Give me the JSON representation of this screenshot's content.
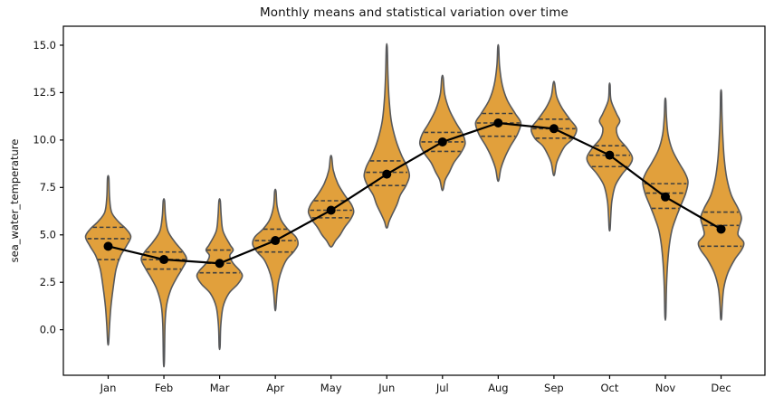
{
  "chart_data": {
    "type": "violin",
    "title": "Monthly means and statistical variation over time",
    "ylabel": "sea_water_temperature",
    "xlabel": "",
    "categories": [
      "Jan",
      "Feb",
      "Mar",
      "Apr",
      "May",
      "Jun",
      "Jul",
      "Aug",
      "Sep",
      "Oct",
      "Nov",
      "Dec"
    ],
    "ylim": [
      -2.4,
      16.0
    ],
    "yticks": [
      {
        "v": 0.0,
        "label": "0.0"
      },
      {
        "v": 2.5,
        "label": "2.5"
      },
      {
        "v": 5.0,
        "label": "5.0"
      },
      {
        "v": 7.5,
        "label": "7.5"
      },
      {
        "v": 10.0,
        "label": "10.0"
      },
      {
        "v": 12.5,
        "label": "12.5"
      },
      {
        "v": 15.0,
        "label": "15.0"
      }
    ],
    "grid": false,
    "legend": "none",
    "mean_series": {
      "name": "monthly mean",
      "values": [
        4.4,
        3.7,
        3.5,
        4.7,
        6.3,
        8.2,
        9.9,
        10.9,
        10.6,
        9.2,
        7.0,
        5.3
      ]
    },
    "violins": [
      {
        "label": "Jan",
        "min": -0.7,
        "max": 8.0,
        "q1": 3.7,
        "median": 4.8,
        "q3": 5.4,
        "mean": 4.4,
        "profile": [
          [
            8.0,
            0.03
          ],
          [
            7.0,
            0.06
          ],
          [
            6.2,
            0.15
          ],
          [
            5.7,
            0.45
          ],
          [
            5.3,
            0.8
          ],
          [
            4.9,
            1.0
          ],
          [
            4.4,
            0.8
          ],
          [
            3.9,
            0.55
          ],
          [
            3.2,
            0.35
          ],
          [
            2.2,
            0.22
          ],
          [
            1.2,
            0.12
          ],
          [
            0.2,
            0.06
          ],
          [
            -0.7,
            0.02
          ]
        ]
      },
      {
        "label": "Feb",
        "min": -1.7,
        "max": 6.8,
        "q1": 3.2,
        "median": 3.7,
        "q3": 4.1,
        "mean": 3.7,
        "profile": [
          [
            6.8,
            0.03
          ],
          [
            6.0,
            0.07
          ],
          [
            5.2,
            0.18
          ],
          [
            4.6,
            0.5
          ],
          [
            4.1,
            0.85
          ],
          [
            3.7,
            1.0
          ],
          [
            3.2,
            0.8
          ],
          [
            2.7,
            0.55
          ],
          [
            2.1,
            0.3
          ],
          [
            1.3,
            0.12
          ],
          [
            0.3,
            0.05
          ],
          [
            -1.7,
            0.02
          ]
        ]
      },
      {
        "label": "Mar",
        "min": -0.9,
        "max": 6.8,
        "q1": 3.0,
        "median": 3.5,
        "q3": 4.2,
        "mean": 3.5,
        "profile": [
          [
            6.8,
            0.03
          ],
          [
            6.0,
            0.07
          ],
          [
            5.2,
            0.15
          ],
          [
            4.5,
            0.45
          ],
          [
            4.2,
            0.6
          ],
          [
            3.9,
            0.45
          ],
          [
            3.5,
            0.6
          ],
          [
            3.1,
            0.9
          ],
          [
            2.8,
            1.0
          ],
          [
            2.4,
            0.8
          ],
          [
            1.9,
            0.4
          ],
          [
            1.2,
            0.15
          ],
          [
            0.2,
            0.05
          ],
          [
            -0.9,
            0.02
          ]
        ]
      },
      {
        "label": "Apr",
        "min": 1.1,
        "max": 7.3,
        "q1": 4.1,
        "median": 4.7,
        "q3": 5.3,
        "mean": 4.7,
        "profile": [
          [
            7.3,
            0.03
          ],
          [
            6.5,
            0.08
          ],
          [
            5.8,
            0.25
          ],
          [
            5.3,
            0.55
          ],
          [
            4.9,
            0.9
          ],
          [
            4.5,
            1.0
          ],
          [
            4.1,
            0.8
          ],
          [
            3.7,
            0.5
          ],
          [
            3.2,
            0.3
          ],
          [
            2.6,
            0.15
          ],
          [
            1.9,
            0.07
          ],
          [
            1.1,
            0.02
          ]
        ]
      },
      {
        "label": "May",
        "min": 4.4,
        "max": 9.1,
        "q1": 5.9,
        "median": 6.3,
        "q3": 6.8,
        "mean": 6.3,
        "profile": [
          [
            9.1,
            0.03
          ],
          [
            8.4,
            0.1
          ],
          [
            7.7,
            0.3
          ],
          [
            7.1,
            0.6
          ],
          [
            6.6,
            0.9
          ],
          [
            6.2,
            1.0
          ],
          [
            5.8,
            0.85
          ],
          [
            5.4,
            0.6
          ],
          [
            5.0,
            0.4
          ],
          [
            4.7,
            0.2
          ],
          [
            4.4,
            0.05
          ]
        ]
      },
      {
        "label": "Jun",
        "min": 5.4,
        "max": 14.9,
        "q1": 7.6,
        "median": 8.3,
        "q3": 8.9,
        "mean": 8.2,
        "profile": [
          [
            14.9,
            0.02
          ],
          [
            13.5,
            0.05
          ],
          [
            12.2,
            0.1
          ],
          [
            11.0,
            0.2
          ],
          [
            10.0,
            0.4
          ],
          [
            9.2,
            0.65
          ],
          [
            8.6,
            0.9
          ],
          [
            8.1,
            1.0
          ],
          [
            7.6,
            0.85
          ],
          [
            7.1,
            0.6
          ],
          [
            6.6,
            0.45
          ],
          [
            6.1,
            0.25
          ],
          [
            5.7,
            0.1
          ],
          [
            5.4,
            0.03
          ]
        ]
      },
      {
        "label": "Jul",
        "min": 7.4,
        "max": 13.3,
        "q1": 9.4,
        "median": 9.9,
        "q3": 10.4,
        "mean": 9.9,
        "profile": [
          [
            13.3,
            0.03
          ],
          [
            12.4,
            0.1
          ],
          [
            11.6,
            0.3
          ],
          [
            10.9,
            0.6
          ],
          [
            10.3,
            0.9
          ],
          [
            9.8,
            1.0
          ],
          [
            9.3,
            0.8
          ],
          [
            8.8,
            0.5
          ],
          [
            8.3,
            0.3
          ],
          [
            7.9,
            0.12
          ],
          [
            7.4,
            0.03
          ]
        ]
      },
      {
        "label": "Aug",
        "min": 7.9,
        "max": 14.9,
        "q1": 10.2,
        "median": 10.9,
        "q3": 11.4,
        "mean": 10.9,
        "profile": [
          [
            14.9,
            0.02
          ],
          [
            13.9,
            0.06
          ],
          [
            12.9,
            0.18
          ],
          [
            12.1,
            0.4
          ],
          [
            11.4,
            0.75
          ],
          [
            10.9,
            1.0
          ],
          [
            10.3,
            0.85
          ],
          [
            9.7,
            0.55
          ],
          [
            9.1,
            0.3
          ],
          [
            8.5,
            0.12
          ],
          [
            7.9,
            0.03
          ]
        ]
      },
      {
        "label": "Sep",
        "min": 8.2,
        "max": 13.0,
        "q1": 10.1,
        "median": 10.6,
        "q3": 11.1,
        "mean": 10.6,
        "profile": [
          [
            13.0,
            0.03
          ],
          [
            12.3,
            0.12
          ],
          [
            11.7,
            0.35
          ],
          [
            11.1,
            0.7
          ],
          [
            10.6,
            1.0
          ],
          [
            10.1,
            0.85
          ],
          [
            9.7,
            0.5
          ],
          [
            9.3,
            0.3
          ],
          [
            8.8,
            0.12
          ],
          [
            8.2,
            0.03
          ]
        ]
      },
      {
        "label": "Oct",
        "min": 5.3,
        "max": 12.9,
        "q1": 8.6,
        "median": 9.2,
        "q3": 9.7,
        "mean": 9.2,
        "profile": [
          [
            12.9,
            0.02
          ],
          [
            12.1,
            0.06
          ],
          [
            11.4,
            0.3
          ],
          [
            11.0,
            0.45
          ],
          [
            10.6,
            0.3
          ],
          [
            10.1,
            0.4
          ],
          [
            9.6,
            0.75
          ],
          [
            9.1,
            1.0
          ],
          [
            8.7,
            0.9
          ],
          [
            8.2,
            0.55
          ],
          [
            7.6,
            0.25
          ],
          [
            6.8,
            0.1
          ],
          [
            6.0,
            0.05
          ],
          [
            5.3,
            0.02
          ]
        ]
      },
      {
        "label": "Nov",
        "min": 0.7,
        "max": 12.1,
        "q1": 6.4,
        "median": 7.2,
        "q3": 7.7,
        "mean": 7.0,
        "profile": [
          [
            12.1,
            0.02
          ],
          [
            11.2,
            0.05
          ],
          [
            10.3,
            0.12
          ],
          [
            9.5,
            0.3
          ],
          [
            8.8,
            0.6
          ],
          [
            8.3,
            0.85
          ],
          [
            7.8,
            1.0
          ],
          [
            7.2,
            0.9
          ],
          [
            6.6,
            0.7
          ],
          [
            6.0,
            0.5
          ],
          [
            5.3,
            0.3
          ],
          [
            4.5,
            0.18
          ],
          [
            3.5,
            0.1
          ],
          [
            2.3,
            0.05
          ],
          [
            0.7,
            0.02
          ]
        ]
      },
      {
        "label": "Dec",
        "min": 0.6,
        "max": 12.5,
        "q1": 4.4,
        "median": 5.5,
        "q3": 6.2,
        "mean": 5.3,
        "profile": [
          [
            12.5,
            0.02
          ],
          [
            11.3,
            0.04
          ],
          [
            10.1,
            0.08
          ],
          [
            9.0,
            0.14
          ],
          [
            8.0,
            0.25
          ],
          [
            7.1,
            0.45
          ],
          [
            6.4,
            0.75
          ],
          [
            5.9,
            0.9
          ],
          [
            5.4,
            0.8
          ],
          [
            5.0,
            0.75
          ],
          [
            4.6,
            1.0
          ],
          [
            4.2,
            0.9
          ],
          [
            3.7,
            0.6
          ],
          [
            3.0,
            0.3
          ],
          [
            2.2,
            0.12
          ],
          [
            1.3,
            0.05
          ],
          [
            0.6,
            0.02
          ]
        ]
      }
    ],
    "colors": {
      "violin_fill": "#E1A03C",
      "violin_edge": "#58595B",
      "quartile_line": "#3F3F3F",
      "mean_line": "#000000",
      "mean_dot": "#000000",
      "axis": "#000000",
      "background": "#FFFFFF"
    }
  }
}
